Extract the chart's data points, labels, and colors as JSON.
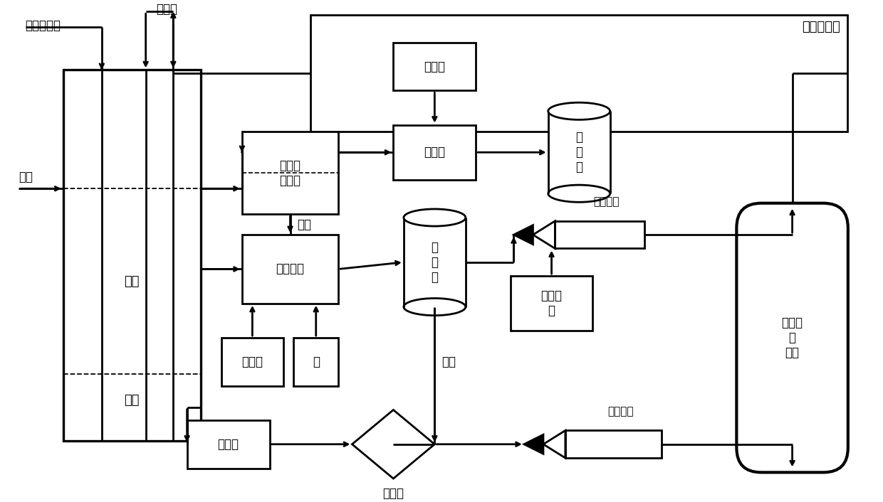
{
  "bg_color": "#ffffff",
  "lw": 1.5,
  "lw_thick": 2.0,
  "fs": 12,
  "fs_small": 11,
  "labels": {
    "coal_wastewater": "煤转化废水",
    "flocculant": "絮凝剂",
    "waste_oil": "废油",
    "wastewater_in_tank": "废水",
    "sludge": "污泥",
    "oil_sep": "油水分\n离装置",
    "emulsifier_label": "乳化剂",
    "emulsify_tank": "乳化罐",
    "oil_tank": "储\n油\n罐",
    "slurry_device": "制浆装置",
    "slurry_tank": "储\n浆\n罐",
    "additive": "添加剂",
    "coal": "煤",
    "stirrer": "搅拌罐",
    "filter": "过滤器",
    "residue": "残渣",
    "atomize_medium": "雾化介\n质",
    "pneumatic_nozzle": "气力喷嘴",
    "mechanical_nozzle": "机械喷嘴",
    "gasifier": "气化炉\n或\n锅炉",
    "gasifier_wastewater": "气化炉废水",
    "wastewater_label": "废水"
  }
}
